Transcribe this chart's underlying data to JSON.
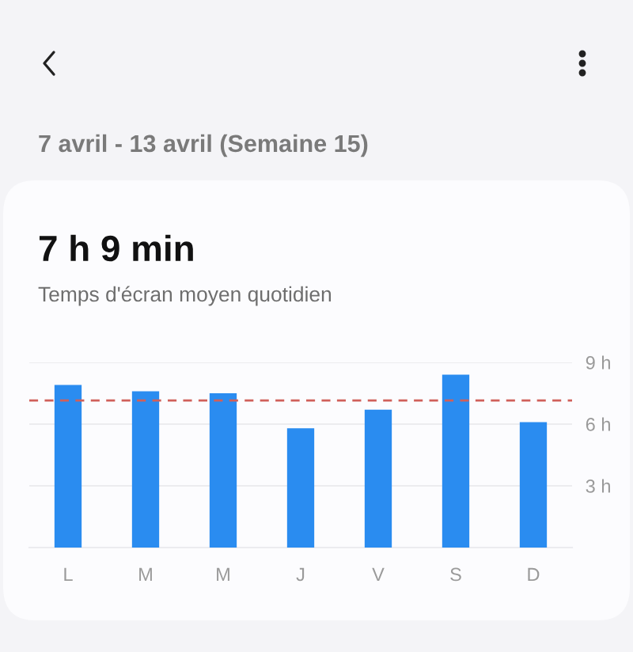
{
  "chart_data": {
    "type": "bar",
    "title": "7 h 9 min",
    "subtitle": "Temps d'écran moyen quotidien",
    "annotations": [
      "7 avril - 13 avril (Semaine 15)"
    ],
    "categories": [
      "L",
      "M",
      "M",
      "J",
      "V",
      "S",
      "D"
    ],
    "values": [
      7.9,
      7.6,
      7.5,
      5.8,
      6.7,
      8.4,
      6.1
    ],
    "color": "#2a8cf0",
    "ylim": [
      0,
      9
    ],
    "yticks": [
      {
        "value": 0,
        "label": null
      },
      {
        "value": 3,
        "label": "3 h"
      },
      {
        "value": 6,
        "label": "6 h"
      },
      {
        "value": 9,
        "label": "9 h"
      }
    ],
    "grid": "y",
    "ref_lines": [
      {
        "axis": "y",
        "value": 7.15,
        "color": "#d0605a",
        "line_style": "dashed"
      }
    ]
  }
}
